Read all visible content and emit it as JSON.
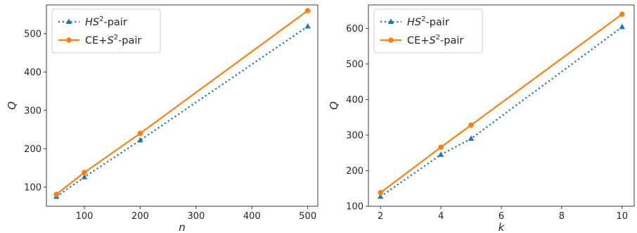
{
  "chart_data": [
    {
      "type": "line",
      "xlabel": "n",
      "ylabel": "Q",
      "xlim": [
        32,
        518
      ],
      "ylim": [
        50,
        575
      ],
      "xticks": [
        100,
        200,
        300,
        400,
        500
      ],
      "yticks": [
        100,
        200,
        300,
        400,
        500
      ],
      "grid": false,
      "legend_position": "top-left",
      "series": [
        {
          "name_main": "HS",
          "name_sup": "2",
          "name_suffix": "-pair",
          "style": "dotted",
          "marker": "triangle",
          "color": "#1f77b4",
          "x": [
            50,
            100,
            200,
            500
          ],
          "y": [
            75,
            126,
            222,
            519
          ]
        },
        {
          "name_main": "CE+S",
          "name_sup": "2",
          "name_suffix": "-pair",
          "style": "solid",
          "marker": "circle",
          "color": "#ff7f0e",
          "x": [
            50,
            100,
            200,
            500
          ],
          "y": [
            81,
            138,
            240,
            560
          ]
        }
      ]
    },
    {
      "type": "line",
      "xlabel": "k",
      "ylabel": "Q",
      "xlim": [
        1.6,
        10.4
      ],
      "ylim": [
        100,
        666
      ],
      "xticks": [
        2,
        4,
        6,
        8,
        10
      ],
      "yticks": [
        100,
        200,
        300,
        400,
        500,
        600
      ],
      "grid": false,
      "legend_position": "top-left",
      "series": [
        {
          "name_main": "HS",
          "name_sup": "2",
          "name_suffix": "-pair",
          "style": "dotted",
          "marker": "triangle",
          "color": "#1f77b4",
          "x": [
            2,
            4,
            5,
            10
          ],
          "y": [
            127,
            245,
            290,
            604
          ]
        },
        {
          "name_main": "CE+S",
          "name_sup": "2",
          "name_suffix": "-pair",
          "style": "solid",
          "marker": "circle",
          "color": "#ff7f0e",
          "x": [
            2,
            4,
            5,
            10
          ],
          "y": [
            138,
            266,
            328,
            640
          ]
        }
      ]
    }
  ]
}
